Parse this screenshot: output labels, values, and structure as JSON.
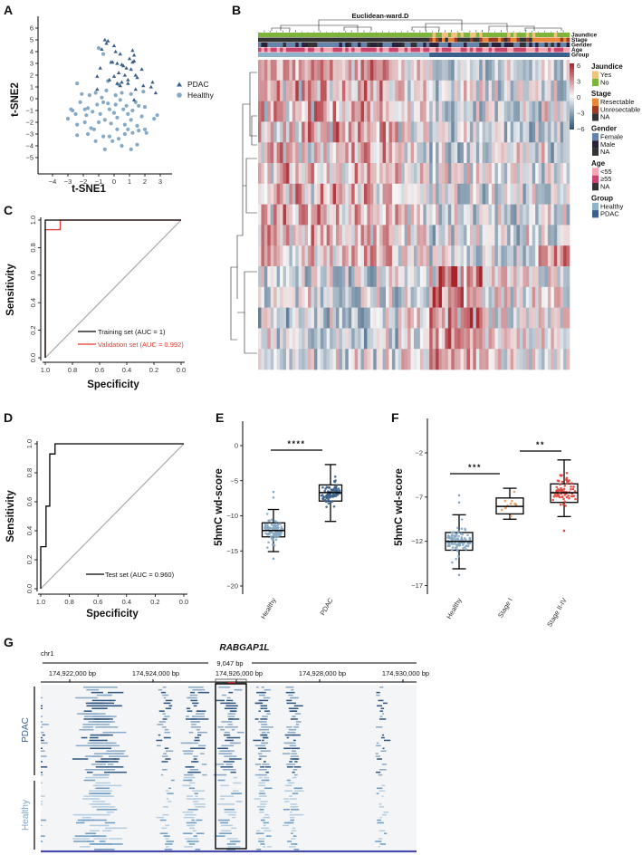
{
  "panels": {
    "A": "A",
    "B": "B",
    "C": "C",
    "D": "D",
    "E": "E",
    "F": "F",
    "G": "G"
  },
  "colors": {
    "pdac": "#3b6089",
    "healthy": "#86a9c5",
    "red": "#e8372b",
    "stage1": "#e89a5e",
    "stage24": "#e0453a",
    "heat_hi": "#a8242c",
    "heat_lo": "#2c5478"
  },
  "chart_data": [
    {
      "id": "A",
      "type": "scatter",
      "xlabel": "t-SNE1",
      "ylabel": "t-SNE2",
      "xticks": [
        -4,
        -3,
        -2,
        -1,
        0,
        1,
        2,
        3
      ],
      "yticks": [
        6,
        5,
        4,
        3,
        2,
        1,
        0,
        -1,
        -2,
        -3,
        -4,
        -5
      ],
      "legend": [
        "PDAC",
        "Healthy"
      ],
      "legend_placement": "right",
      "series": [
        {
          "name": "PDAC",
          "marker": "triangle",
          "points": [
            [
              -0.6,
              5
            ],
            [
              -0.4,
              4.9
            ],
            [
              -0.5,
              4.7
            ],
            [
              -0.8,
              4.2
            ],
            [
              0,
              4.5
            ],
            [
              0.1,
              4
            ],
            [
              -0.2,
              3.1
            ],
            [
              0.4,
              3.8
            ],
            [
              1.2,
              4.1
            ],
            [
              1.3,
              3.7
            ],
            [
              0.5,
              2.9
            ],
            [
              1.2,
              3.1
            ],
            [
              1.3,
              3.2
            ],
            [
              1,
              3.4
            ],
            [
              0.8,
              2.6
            ],
            [
              1.1,
              2.5
            ],
            [
              0.3,
              2.2
            ],
            [
              0.7,
              2
            ],
            [
              -0.9,
              2.6
            ],
            [
              -1.1,
              1.9
            ],
            [
              0,
              1.9
            ],
            [
              0.5,
              1.4
            ],
            [
              0.9,
              1.6
            ],
            [
              1.5,
              1.8
            ],
            [
              1.8,
              2.5
            ],
            [
              1.9,
              1.1
            ],
            [
              2.5,
              1.4
            ],
            [
              2.4,
              1
            ],
            [
              2.7,
              0.5
            ],
            [
              1.4,
              0.8
            ],
            [
              0.9,
              1.3
            ],
            [
              -1.1,
              0.8
            ],
            [
              0.4,
              1.1
            ],
            [
              1.3,
              -0.1
            ],
            [
              -0.3,
              1.6
            ],
            [
              0.2,
              3
            ],
            [
              -0.1,
              3.1
            ],
            [
              0.6,
              2.8
            ],
            [
              1.4,
              2
            ],
            [
              0.2,
              1.3
            ]
          ]
        },
        {
          "name": "Healthy",
          "marker": "circle",
          "points": [
            [
              -1,
              4.3
            ],
            [
              -0.7,
              3.8
            ],
            [
              -2.4,
              1.3
            ],
            [
              -2.1,
              0.4
            ],
            [
              -1.6,
              0.3
            ],
            [
              -1.2,
              0.5
            ],
            [
              -0.5,
              0.7
            ],
            [
              0.1,
              0.3
            ],
            [
              0.5,
              0.5
            ],
            [
              1.1,
              0.4
            ],
            [
              1.9,
              0.6
            ],
            [
              -2.7,
              -1
            ],
            [
              -3,
              -1.7
            ],
            [
              -2.5,
              -1.3
            ],
            [
              -2.2,
              -0.3
            ],
            [
              -1.7,
              -0.8
            ],
            [
              -1.4,
              -1.1
            ],
            [
              -1.1,
              -0.5
            ],
            [
              -0.7,
              -0.3
            ],
            [
              -0.3,
              -0.9
            ],
            [
              0.1,
              -0.5
            ],
            [
              0.4,
              -0.1
            ],
            [
              0.8,
              -0.6
            ],
            [
              1.2,
              -1
            ],
            [
              1.6,
              -0.6
            ],
            [
              2,
              -0.7
            ],
            [
              2.8,
              -1.4
            ],
            [
              2.6,
              -1.7
            ],
            [
              -2.4,
              -2.2
            ],
            [
              -1.9,
              -2
            ],
            [
              -1.5,
              -2.5
            ],
            [
              -1,
              -2
            ],
            [
              -0.6,
              -1.8
            ],
            [
              -0.2,
              -2.1
            ],
            [
              0.2,
              -1.6
            ],
            [
              0.7,
              -2.2
            ],
            [
              1.1,
              -1.8
            ],
            [
              1.5,
              -2.3
            ],
            [
              2,
              -2.6
            ],
            [
              2.1,
              -2.9
            ],
            [
              -2.4,
              -3.1
            ],
            [
              -1.7,
              -3
            ],
            [
              -1.2,
              -3.6
            ],
            [
              -0.7,
              -3.2
            ],
            [
              -0.3,
              -3.2
            ],
            [
              0.3,
              -3.4
            ],
            [
              0.7,
              -3
            ],
            [
              1.2,
              -2.9
            ],
            [
              1.6,
              -2.7
            ],
            [
              -0.6,
              -4.3
            ],
            [
              0.5,
              -4
            ],
            [
              1.1,
              -4.3
            ],
            [
              1.5,
              -3.9
            ],
            [
              -0.1,
              -3.6
            ],
            [
              -1.8,
              -1.4
            ],
            [
              -0.9,
              -1.3
            ],
            [
              0,
              -1.2
            ],
            [
              0.9,
              -1.3
            ],
            [
              1.8,
              -1.5
            ],
            [
              -2.8,
              -0.9
            ],
            [
              -1.3,
              -2.6
            ],
            [
              0.2,
              -2.6
            ],
            [
              0.9,
              -2.6
            ],
            [
              -0.4,
              -0.4
            ],
            [
              0.6,
              -0.9
            ],
            [
              1.4,
              -0.3
            ],
            [
              -1.9,
              -0.9
            ],
            [
              -0.8,
              0.1
            ],
            [
              0.3,
              1.2
            ],
            [
              -0.4,
              1.5
            ]
          ]
        }
      ]
    },
    {
      "id": "B",
      "type": "heatmap",
      "title": "Euclidean-ward.D",
      "rows": 15,
      "columns": 100,
      "color_range": [
        -6,
        6
      ],
      "colorbar_ticks": [
        "6",
        "3",
        "0",
        "−3",
        "−6"
      ],
      "annotation_rows": [
        "Jaundice",
        "Stage",
        "Gender",
        "Age",
        "Group"
      ],
      "legend": [
        {
          "title": "Jaundice",
          "items": [
            {
              "label": "Yes",
              "color": "#f0c27e"
            },
            {
              "label": "No",
              "color": "#7eb43a"
            }
          ]
        },
        {
          "title": "Stage",
          "items": [
            {
              "label": "Resectable",
              "color": "#e8873a"
            },
            {
              "label": "Unresectable",
              "color": "#9a3c22"
            },
            {
              "label": "NA",
              "color": "#333333"
            }
          ]
        },
        {
          "title": "Gender",
          "items": [
            {
              "label": "Female",
              "color": "#6683ad"
            },
            {
              "label": "Male",
              "color": "#2a2238"
            },
            {
              "label": "NA",
              "color": "#333333"
            }
          ]
        },
        {
          "title": "Age",
          "items": [
            {
              "label": "<55",
              "color": "#f4a6b0"
            },
            {
              "label": "≥55",
              "color": "#c9456e"
            },
            {
              "label": "NA",
              "color": "#333333"
            }
          ]
        },
        {
          "title": "Group",
          "items": [
            {
              "label": "Healthy",
              "color": "#8fb3c9"
            },
            {
              "label": "PDAC",
              "color": "#3b6089"
            }
          ]
        }
      ]
    },
    {
      "id": "C",
      "type": "line",
      "xlabel": "Specificity",
      "ylabel": "Sensitivity",
      "xlim": [
        1,
        0
      ],
      "ylim": [
        0,
        1
      ],
      "xticks": [
        "1.0",
        "0.8",
        "0.6",
        "0.4",
        "0.2",
        "0.0"
      ],
      "yticks": [
        "0.0",
        "0.2",
        "0.4",
        "0.6",
        "0.8",
        "1.0"
      ],
      "legend_placement": "bottom-right",
      "series": [
        {
          "name": "Training set (AUC = 1)",
          "color": "#000000",
          "points": [
            [
              1,
              0
            ],
            [
              1,
              1
            ],
            [
              0.9,
              1
            ],
            [
              0,
              1
            ]
          ]
        },
        {
          "name": "Validation set (AUC = 0.992)",
          "color": "#e8372b",
          "points": [
            [
              1,
              0
            ],
            [
              1,
              0.93
            ],
            [
              0.89,
              0.93
            ],
            [
              0.89,
              1
            ],
            [
              0,
              1
            ]
          ]
        }
      ]
    },
    {
      "id": "D",
      "type": "line",
      "xlabel": "Specificity",
      "ylabel": "Sensitivity",
      "xlim": [
        1,
        0
      ],
      "ylim": [
        0,
        1
      ],
      "xticks": [
        "1.0",
        "0.8",
        "0.6",
        "0.4",
        "0.2",
        "0.0"
      ],
      "yticks": [
        "0.0",
        "0.2",
        "0.4",
        "0.6",
        "0.8",
        "1.0"
      ],
      "legend_placement": "bottom-right",
      "series": [
        {
          "name": "Test set (AUC = 0.960)",
          "color": "#000000",
          "points": [
            [
              1,
              0
            ],
            [
              1,
              0.29
            ],
            [
              0.963,
              0.29
            ],
            [
              0.963,
              0.57
            ],
            [
              0.937,
              0.57
            ],
            [
              0.937,
              0.93
            ],
            [
              0.9,
              0.93
            ],
            [
              0.9,
              1
            ],
            [
              0,
              1
            ]
          ]
        }
      ]
    },
    {
      "id": "E",
      "type": "box",
      "ylabel": "5hmC wd-score",
      "ylim": [
        -21,
        3
      ],
      "yticks": [
        0,
        -5,
        -10,
        -15,
        -20
      ],
      "categories": [
        "Healthy",
        "PDAC"
      ],
      "boxes": [
        {
          "name": "Healthy",
          "color": "#86a9c5",
          "whisker_low": -15.1,
          "q1": -13,
          "median": -12.1,
          "q3": -11,
          "whisker_high": -9.1,
          "outliers": [
            -6.6,
            -7.4,
            -16.1
          ],
          "n": 120
        },
        {
          "name": "PDAC",
          "color": "#3b6089",
          "whisker_low": -10.8,
          "q1": -7.9,
          "median": -6.7,
          "q3": -5.6,
          "whisker_high": -2.7,
          "outliers": [],
          "n": 90
        }
      ],
      "significance": [
        {
          "from": "Healthy",
          "to": "PDAC",
          "label": "****"
        }
      ]
    },
    {
      "id": "F",
      "type": "box",
      "ylabel": "5hmC wd-score",
      "ylim": [
        -18,
        2
      ],
      "yticks": [
        -2,
        -7,
        -12,
        -17
      ],
      "categories": [
        "Healthy",
        "Stage I",
        "Stage II-IV"
      ],
      "boxes": [
        {
          "name": "Healthy",
          "color": "#86a9c5",
          "whisker_low": -15.1,
          "q1": -13,
          "median": -12,
          "q3": -11,
          "whisker_high": -9,
          "outliers": [
            -6.8,
            -7.6,
            -15.8
          ],
          "n": 120
        },
        {
          "name": "Stage I",
          "color": "#e89a5e",
          "whisker_low": -9.5,
          "q1": -8.9,
          "median": -8.05,
          "q3": -7.1,
          "whisker_high": -6,
          "outliers": [],
          "n": 12
        },
        {
          "name": "Stage II-IV",
          "color": "#e0453a",
          "whisker_low": -9.2,
          "q1": -7.6,
          "median": -6.5,
          "q3": -5.5,
          "whisker_high": -2.8,
          "outliers": [
            -10.8
          ],
          "n": 70
        }
      ],
      "significance": [
        {
          "from": "Healthy",
          "to": "Stage I",
          "label": "***"
        },
        {
          "from": "Stage I",
          "to": "Stage II-IV",
          "label": "**"
        }
      ]
    },
    {
      "id": "G",
      "type": "genome-track",
      "gene": "RABGAP1L",
      "chromosome": "chr1",
      "span_label": "9,047 bp",
      "ticks": [
        {
          "bp": 174922000,
          "label": "174,922,000 bp"
        },
        {
          "bp": 174924000,
          "label": "174,924,000 bp"
        },
        {
          "bp": 174926000,
          "label": "174,926,000 bp"
        },
        {
          "bp": 174928000,
          "label": "174,928,000 bp"
        },
        {
          "bp": 174930000,
          "label": "174,930,000 bp"
        }
      ],
      "groups": [
        "PDAC",
        "Healthy"
      ],
      "highlight_region_bp": [
        174927500,
        174928250
      ],
      "peaks": [
        {
          "center_bp": 174922720,
          "width_bp": 900,
          "density": 0.95
        },
        {
          "center_bp": 174921300,
          "width_bp": 300,
          "density": 0.2
        },
        {
          "center_bp": 174924300,
          "width_bp": 300,
          "density": 0.35
        },
        {
          "center_bp": 174925000,
          "width_bp": 450,
          "density": 0.75
        },
        {
          "center_bp": 174925850,
          "width_bp": 500,
          "density": 0.55
        },
        {
          "center_bp": 174926650,
          "width_bp": 300,
          "density": 0.7
        },
        {
          "center_bp": 174927330,
          "width_bp": 350,
          "density": 0.6
        },
        {
          "center_bp": 174929500,
          "width_bp": 250,
          "density": 0.3
        }
      ]
    }
  ]
}
